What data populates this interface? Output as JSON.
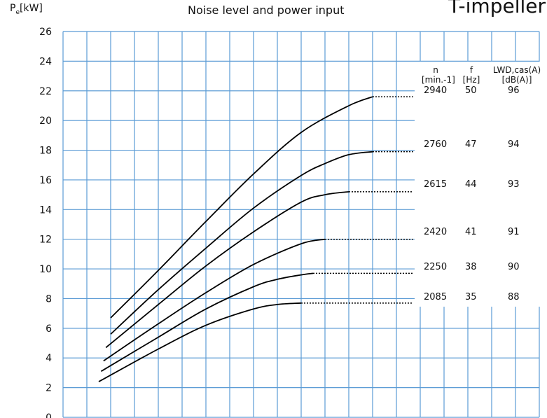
{
  "header": {
    "y_axis_label_base": "P",
    "y_axis_label_sub": "e",
    "y_axis_label_unit": "[kW]",
    "title": "Noise level and power input",
    "title_right": "T-impeller"
  },
  "table": {
    "headers": [
      {
        "top": "n",
        "bottom": "[min.-1]"
      },
      {
        "top": "f",
        "bottom": "[Hz]"
      },
      {
        "top": "LWD,cas(A)",
        "bottom": "[dB(A)]"
      }
    ],
    "rows": [
      {
        "n": "2940",
        "f": "50",
        "lw": "96"
      },
      {
        "n": "2760",
        "f": "47",
        "lw": "94"
      },
      {
        "n": "2615",
        "f": "44",
        "lw": "93"
      },
      {
        "n": "2420",
        "f": "41",
        "lw": "91"
      },
      {
        "n": "2250",
        "f": "38",
        "lw": "90"
      },
      {
        "n": "2085",
        "f": "35",
        "lw": "88"
      }
    ]
  },
  "chart_data": {
    "type": "line",
    "title": "Noise level and power input",
    "ylabel": "Pe[kW]",
    "xlabel": "",
    "ylim": [
      0,
      26
    ],
    "xlim": [
      0,
      15
    ],
    "yticks": [
      0,
      2,
      4,
      6,
      8,
      10,
      12,
      14,
      16,
      18,
      20,
      22,
      24,
      26
    ],
    "grid": true,
    "series": [
      {
        "name": "2940",
        "points": [
          [
            2,
            6.7
          ],
          [
            4,
            9.9
          ],
          [
            6,
            13.2
          ],
          [
            8,
            16.4
          ],
          [
            10,
            19.2
          ],
          [
            12,
            21.0
          ],
          [
            13,
            21.6
          ]
        ],
        "dotted_to": 14.7
      },
      {
        "name": "2760",
        "points": [
          [
            2,
            5.6
          ],
          [
            4,
            8.6
          ],
          [
            6,
            11.4
          ],
          [
            8,
            14.1
          ],
          [
            10,
            16.3
          ],
          [
            11,
            17.1
          ],
          [
            12,
            17.7
          ],
          [
            13,
            17.9
          ]
        ],
        "dotted_to": 14.7
      },
      {
        "name": "2615",
        "points": [
          [
            1.8,
            4.7
          ],
          [
            4,
            7.6
          ],
          [
            6,
            10.2
          ],
          [
            8,
            12.5
          ],
          [
            10,
            14.5
          ],
          [
            11,
            15.0
          ],
          [
            12,
            15.2
          ]
        ],
        "dotted_to": 14.7
      },
      {
        "name": "2420",
        "points": [
          [
            1.7,
            3.8
          ],
          [
            4,
            6.3
          ],
          [
            6,
            8.4
          ],
          [
            8,
            10.3
          ],
          [
            10,
            11.7
          ],
          [
            11,
            12.0
          ]
        ],
        "dotted_to": 14.7
      },
      {
        "name": "2250",
        "points": [
          [
            1.6,
            3.1
          ],
          [
            4,
            5.4
          ],
          [
            6,
            7.3
          ],
          [
            8,
            8.8
          ],
          [
            9,
            9.3
          ],
          [
            10,
            9.6
          ],
          [
            10.5,
            9.7
          ]
        ],
        "dotted_to": 14.7
      },
      {
        "name": "2085",
        "points": [
          [
            1.5,
            2.4
          ],
          [
            4,
            4.6
          ],
          [
            6,
            6.2
          ],
          [
            8,
            7.3
          ],
          [
            9,
            7.6
          ],
          [
            10,
            7.7
          ]
        ],
        "dotted_to": 14.7
      }
    ]
  }
}
